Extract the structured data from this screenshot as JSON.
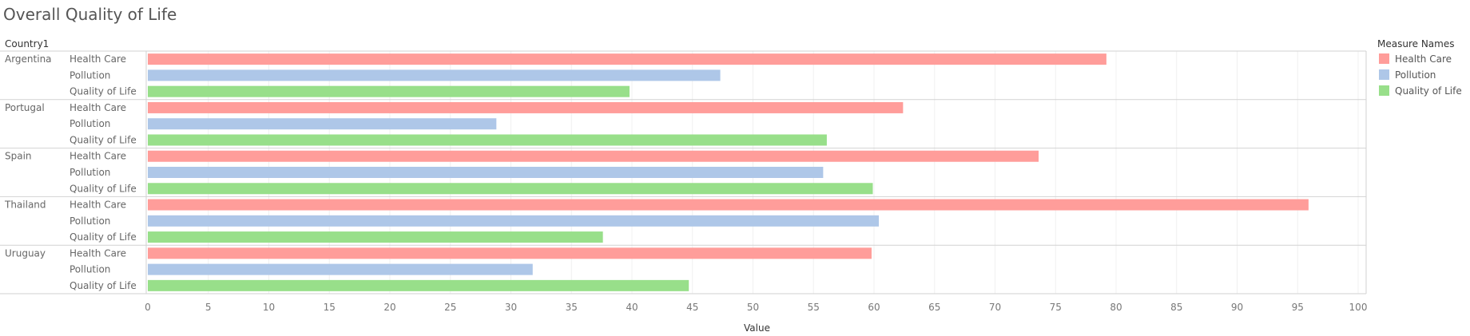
{
  "chart_data": {
    "type": "bar",
    "orientation": "horizontal",
    "title": "Overall Quality of Life",
    "row_header": "Country1",
    "categories": [
      "Argentina",
      "Portugal",
      "Spain",
      "Thailand",
      "Uruguay"
    ],
    "measures": [
      "Health Care",
      "Pollution",
      "Quality of Life"
    ],
    "series": [
      {
        "name": "Health Care",
        "color": "#ff9d9a",
        "values": [
          79.2,
          62.4,
          73.6,
          95.9,
          59.8
        ]
      },
      {
        "name": "Pollution",
        "color": "#aec7e8",
        "values": [
          47.3,
          28.8,
          55.8,
          60.4,
          31.8
        ]
      },
      {
        "name": "Quality of Life",
        "color": "#98df8a",
        "values": [
          39.8,
          56.1,
          59.9,
          37.6,
          44.7
        ]
      }
    ],
    "xlabel": "Value",
    "xlim": [
      0,
      100
    ],
    "xticks": [
      0,
      5,
      10,
      15,
      20,
      25,
      30,
      35,
      40,
      45,
      50,
      55,
      60,
      65,
      70,
      75,
      80,
      85,
      90,
      95,
      100
    ],
    "grid": "vertical",
    "legend": {
      "title": "Measure Names",
      "position": "right"
    }
  }
}
